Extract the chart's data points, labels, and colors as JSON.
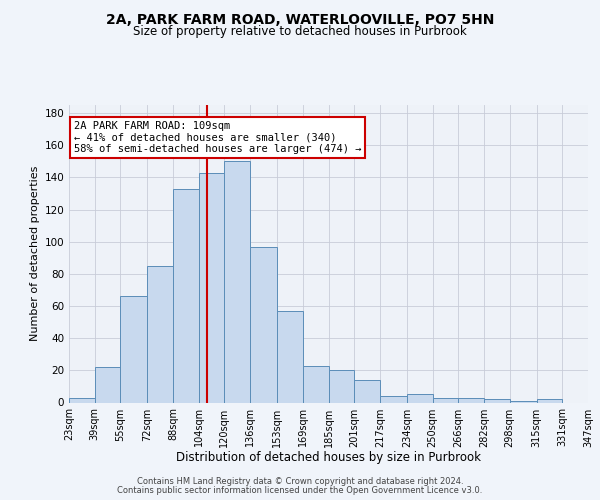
{
  "title1": "2A, PARK FARM ROAD, WATERLOOVILLE, PO7 5HN",
  "title2": "Size of property relative to detached houses in Purbrook",
  "xlabel": "Distribution of detached houses by size in Purbrook",
  "ylabel": "Number of detached properties",
  "categories": [
    "23sqm",
    "39sqm",
    "55sqm",
    "72sqm",
    "88sqm",
    "104sqm",
    "120sqm",
    "136sqm",
    "153sqm",
    "169sqm",
    "185sqm",
    "201sqm",
    "217sqm",
    "234sqm",
    "250sqm",
    "266sqm",
    "282sqm",
    "298sqm",
    "315sqm",
    "331sqm",
    "347sqm"
  ],
  "bar_heights": [
    3,
    22,
    66,
    85,
    133,
    143,
    150,
    97,
    57,
    23,
    20,
    14,
    4,
    5,
    3,
    3,
    2,
    1,
    2,
    0
  ],
  "bin_edges": [
    23,
    39,
    55,
    72,
    88,
    104,
    120,
    136,
    153,
    169,
    185,
    201,
    217,
    234,
    250,
    266,
    282,
    298,
    315,
    331,
    347
  ],
  "bar_color": "#c8d9ee",
  "bar_edge_color": "#5b8db8",
  "vline_x": 109,
  "vline_color": "#cc0000",
  "annotation_text": "2A PARK FARM ROAD: 109sqm\n← 41% of detached houses are smaller (340)\n58% of semi-detached houses are larger (474) →",
  "annotation_box_color": "#ffffff",
  "annotation_box_edge": "#cc0000",
  "grid_color": "#c8ccd8",
  "bg_color": "#f0f4fa",
  "plot_bg_color": "#eef2f8",
  "property_sqm": 109,
  "ylim_max": 185,
  "yticks": [
    0,
    20,
    40,
    60,
    80,
    100,
    120,
    140,
    160,
    180
  ],
  "title1_fontsize": 10,
  "title2_fontsize": 8.5,
  "xlabel_fontsize": 8.5,
  "ylabel_fontsize": 8,
  "xtick_fontsize": 7,
  "ytick_fontsize": 7.5,
  "annot_fontsize": 7.5,
  "footer1": "Contains HM Land Registry data © Crown copyright and database right 2024.",
  "footer2": "Contains public sector information licensed under the Open Government Licence v3.0.",
  "footer_fontsize": 6
}
